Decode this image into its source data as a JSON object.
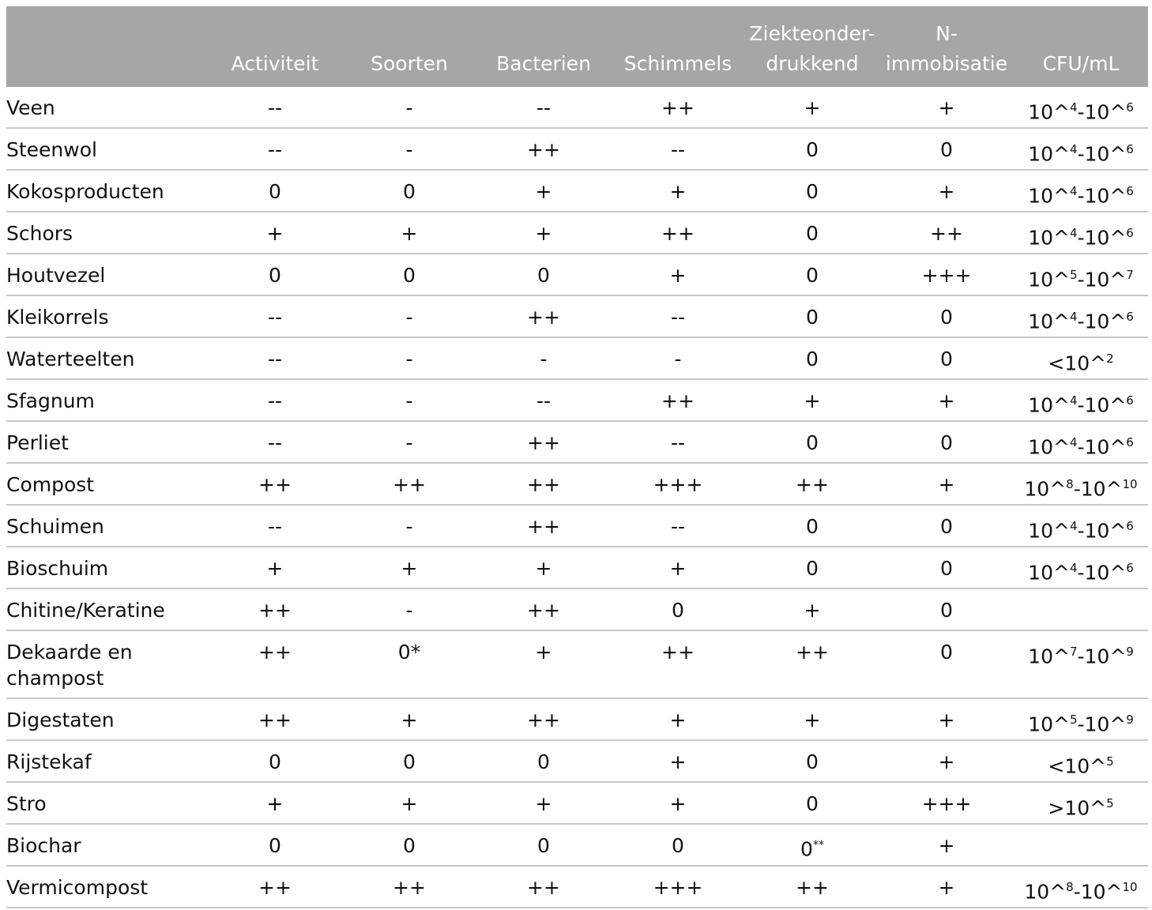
{
  "headers": [
    {
      "lines": [
        ""
      ]
    },
    {
      "lines": [
        "",
        "Activiteit"
      ]
    },
    {
      "lines": [
        "",
        "Soorten"
      ]
    },
    {
      "lines": [
        "",
        "Bacterien"
      ]
    },
    {
      "lines": [
        "",
        "Schimmels"
      ]
    },
    {
      "lines": [
        "Ziekteonder-",
        "drukkend"
      ]
    },
    {
      "lines": [
        "N-",
        "immobisatie"
      ]
    },
    {
      "lines": [
        "",
        "CFU/mL"
      ]
    }
  ],
  "rows": [
    {
      "name": "Veen",
      "activiteit": "--",
      "soorten": "-",
      "bacterien": "--",
      "schimmels": "++",
      "ziekteonderdrukkend": "+",
      "n_immobisatie": "+",
      "cfu": "10^4-10^6"
    },
    {
      "name": "Steenwol",
      "activiteit": "--",
      "soorten": "-",
      "bacterien": "++",
      "schimmels": "--",
      "ziekteonderdrukkend": "0",
      "n_immobisatie": "0",
      "cfu": "10^4-10^6"
    },
    {
      "name": "Kokosproducten",
      "activiteit": "0",
      "soorten": "0",
      "bacterien": "+",
      "schimmels": "+",
      "ziekteonderdrukkend": "0",
      "n_immobisatie": "+",
      "cfu": "10^4-10^6"
    },
    {
      "name": "Schors",
      "activiteit": "+",
      "soorten": "+",
      "bacterien": "+",
      "schimmels": "++",
      "ziekteonderdrukkend": "0",
      "n_immobisatie": "++",
      "cfu": "10^4-10^6"
    },
    {
      "name": "Houtvezel",
      "activiteit": "0",
      "soorten": "0",
      "bacterien": "0",
      "schimmels": "+",
      "ziekteonderdrukkend": "0",
      "n_immobisatie": "+++",
      "cfu": "10^5-10^7"
    },
    {
      "name": "Kleikorrels",
      "activiteit": "--",
      "soorten": "-",
      "bacterien": "++",
      "schimmels": "--",
      "ziekteonderdrukkend": "0",
      "n_immobisatie": "0",
      "cfu": "10^4-10^6"
    },
    {
      "name": "Waterteelten",
      "activiteit": "--",
      "soorten": "-",
      "bacterien": "-",
      "schimmels": "-",
      "ziekteonderdrukkend": "0",
      "n_immobisatie": "0",
      "cfu": "<10^2"
    },
    {
      "name": "Sfagnum",
      "activiteit": "--",
      "soorten": "-",
      "bacterien": "--",
      "schimmels": "++",
      "ziekteonderdrukkend": "+",
      "n_immobisatie": "+",
      "cfu": "10^4-10^6"
    },
    {
      "name": "Perliet",
      "activiteit": "--",
      "soorten": "-",
      "bacterien": "++",
      "schimmels": "--",
      "ziekteonderdrukkend": "0",
      "n_immobisatie": "0",
      "cfu": "10^4-10^6"
    },
    {
      "name": "Compost",
      "activiteit": "++",
      "soorten": "++",
      "bacterien": "++",
      "schimmels": "+++",
      "ziekteonderdrukkend": "++",
      "n_immobisatie": "+",
      "cfu": "10^8-10^10"
    },
    {
      "name": "Schuimen",
      "activiteit": "--",
      "soorten": "-",
      "bacterien": "++",
      "schimmels": "--",
      "ziekteonderdrukkend": "0",
      "n_immobisatie": "0",
      "cfu": "10^4-10^6"
    },
    {
      "name": "Bioschuim",
      "activiteit": "+",
      "soorten": "+",
      "bacterien": "+",
      "schimmels": "+",
      "ziekteonderdrukkend": "0",
      "n_immobisatie": "0",
      "cfu": "10^4-10^6"
    },
    {
      "name": "Chitine/Keratine",
      "activiteit": "++",
      "soorten": "-",
      "bacterien": "++",
      "schimmels": "0",
      "ziekteonderdrukkend": "+",
      "n_immobisatie": "0",
      "cfu": ""
    },
    {
      "name": "Dekaarde en champost",
      "activiteit": "++",
      "soorten": "0*",
      "bacterien": "+",
      "schimmels": "++",
      "ziekteonderdrukkend": "++",
      "n_immobisatie": "0",
      "cfu": "10^7-10^9"
    },
    {
      "name": "Digestaten",
      "activiteit": "++",
      "soorten": "+",
      "bacterien": "++",
      "schimmels": "+",
      "ziekteonderdrukkend": "+",
      "n_immobisatie": "+",
      "cfu": "10^5-10^9"
    },
    {
      "name": "Rijstekaf",
      "activiteit": "0",
      "soorten": "0",
      "bacterien": "0",
      "schimmels": "+",
      "ziekteonderdrukkend": "0",
      "n_immobisatie": "+",
      "cfu": "<10^5"
    },
    {
      "name": "Stro",
      "activiteit": "+",
      "soorten": "+",
      "bacterien": "+",
      "schimmels": "+",
      "ziekteonderdrukkend": "0",
      "n_immobisatie": "+++",
      "cfu": ">10^5"
    },
    {
      "name": "Biochar",
      "activiteit": "0",
      "soorten": "0",
      "bacterien": "0",
      "schimmels": "0",
      "ziekteonderdrukkend": "0**",
      "n_immobisatie": "+",
      "cfu": ""
    },
    {
      "name": "Vermicompost",
      "activiteit": "++",
      "soorten": "++",
      "bacterien": "++",
      "schimmels": "+++",
      "ziekteonderdrukkend": "++",
      "n_immobisatie": "+",
      "cfu": "10^8-10^10"
    }
  ]
}
